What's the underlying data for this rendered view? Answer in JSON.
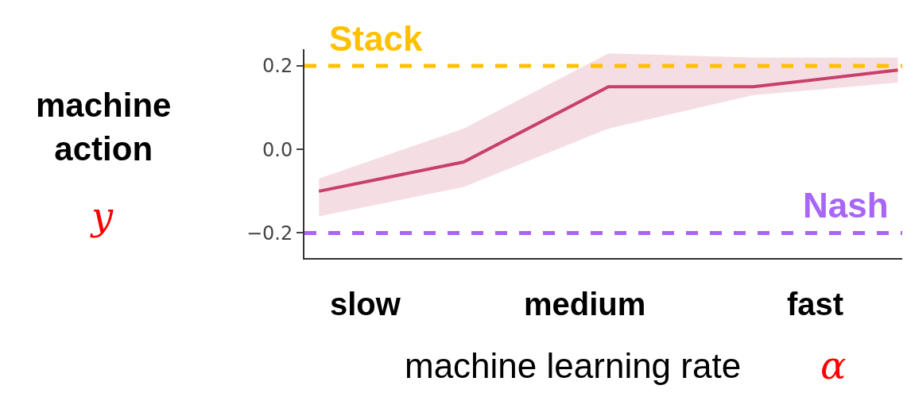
{
  "chart_data": {
    "type": "line",
    "xlabel": "machine learning rate",
    "ylabel": "machine\naction",
    "categories": [
      null,
      null,
      null,
      null,
      null
    ],
    "series": [
      {
        "color": "#c8406a",
        "values": [
          -0.1,
          -0.03,
          0.15,
          0.15,
          0.19
        ],
        "lower": [
          -0.16,
          -0.09,
          0.05,
          0.13,
          0.16
        ],
        "upper": [
          -0.07,
          0.05,
          0.23,
          0.22,
          0.22
        ]
      }
    ],
    "ylim": [
      -0.26,
      0.24
    ],
    "yticks": [
      {
        "value": 0.2,
        "label": "0.2"
      },
      {
        "value": 0,
        "label": "0.0"
      },
      {
        "value": -0.2,
        "label": "−0.2"
      }
    ],
    "ref_lines": [
      {
        "axis": "y",
        "value": 0.2,
        "label": "Stack",
        "color": "#ffc000",
        "line_style": "dashed"
      },
      {
        "axis": "y",
        "value": -0.2,
        "label": "Nash",
        "color": "#a866f5",
        "line_style": "dashed"
      }
    ],
    "annotations": [
      "slow",
      "medium",
      "fast",
      "y",
      "α"
    ],
    "grid": false,
    "marker": "none",
    "line_style": "solid"
  }
}
